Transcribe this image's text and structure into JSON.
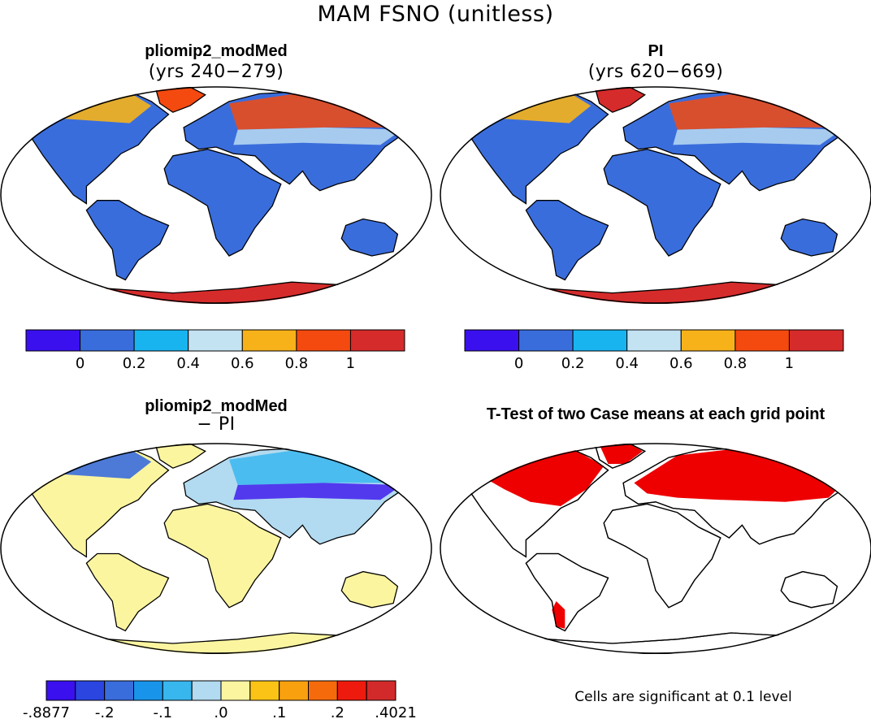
{
  "figure": {
    "title": "MAM FSNO (unitless)",
    "note": "Cells are significant at 0.1 level"
  },
  "panels": [
    {
      "title": "pliomip2_modMed",
      "subtitle": "(yrs 240−279)"
    },
    {
      "title": "PI",
      "subtitle": "(yrs 620−669)"
    },
    {
      "title": "pliomip2_modMed",
      "subtitle": "− PI"
    },
    {
      "title": "T-Test of two Case means at each grid point",
      "subtitle": ""
    }
  ],
  "chart_data": [
    {
      "type": "heatmap",
      "title": "pliomip2_modMed",
      "subtitle": "(yrs 240−279)",
      "colorbar": {
        "colors": [
          "#3a10ee",
          "#3a6ddc",
          "#18b4f0",
          "#c3e2f2",
          "#f7b21a",
          "#f44a0f",
          "#d62b2b"
        ],
        "tick_labels": [
          "0",
          "0.2",
          "0.4",
          "0.6",
          "0.8",
          "1"
        ]
      }
    },
    {
      "type": "heatmap",
      "title": "PI",
      "subtitle": "(yrs 620−669)",
      "colorbar": {
        "colors": [
          "#3a10ee",
          "#3a6ddc",
          "#18b4f0",
          "#c3e2f2",
          "#f7b21a",
          "#f44a0f",
          "#d62b2b"
        ],
        "tick_labels": [
          "0",
          "0.2",
          "0.4",
          "0.6",
          "0.8",
          "1"
        ]
      }
    },
    {
      "type": "heatmap",
      "title": "pliomip2_modMed",
      "subtitle": "− PI",
      "colorbar": {
        "colors": [
          "#3a10ee",
          "#2a45e0",
          "#3a6ddc",
          "#1895ea",
          "#38b6ee",
          "#b2daf0",
          "#fbf5a0",
          "#fbc315",
          "#f9a00f",
          "#f56a0b",
          "#ee1a0d",
          "#d22a2a"
        ],
        "tick_labels": [
          "-.8877",
          "-.2",
          "-.1",
          ".0",
          ".1",
          ".2",
          ".4021"
        ]
      }
    },
    {
      "type": "heatmap",
      "title": "T-Test of two Case means at each grid point",
      "significance_color": "#ee0000",
      "note": "Cells are significant at 0.1 level"
    }
  ]
}
